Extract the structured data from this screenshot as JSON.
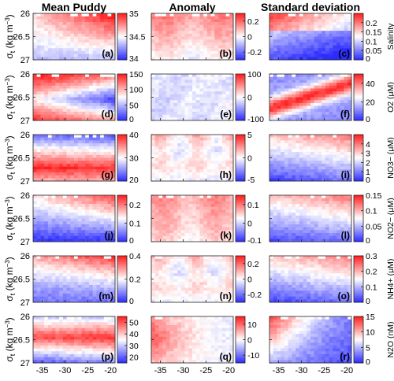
{
  "chart_data": {
    "type": "heatmap",
    "column_titles": [
      "Mean Puddy",
      "Anomaly",
      "Standard deviation"
    ],
    "y_axis_label_main": "σ",
    "y_axis_label_sub": "t",
    "y_axis_label_unit": " (kg m",
    "y_axis_label_exp": "−3",
    "y_axis_label_end": ")",
    "y_ticks": [
      "26",
      "26.5",
      "27"
    ],
    "y_range": [
      26,
      27
    ],
    "x_ticks": [
      "-35",
      "-30",
      "-25",
      "-20"
    ],
    "x_range": [
      -37,
      -19
    ],
    "rows": [
      {
        "variable": "Salinity",
        "cbar_label": "Salinity",
        "panels": [
          {
            "letter": "(a)",
            "pattern": "mean_salt",
            "cbar_ticks": [
              "35",
              "34.5",
              "34"
            ],
            "range": [
              34,
              35
            ]
          },
          {
            "letter": "(b)",
            "pattern": "anom_pos",
            "cbar_ticks": [
              "0.2",
              "0",
              "-0.2"
            ],
            "range": [
              -0.3,
              0.3
            ]
          },
          {
            "letter": "(c)",
            "pattern": "std_shallow",
            "cbar_ticks": [
              "0.2",
              "0.15",
              "0.1",
              "0.05",
              "0"
            ],
            "range": [
              0,
              0.25
            ]
          }
        ]
      },
      {
        "variable": "O2",
        "cbar_label": "O2 (μM)",
        "panels": [
          {
            "letter": "(d)",
            "pattern": "mean_o2",
            "cbar_ticks": [
              "150",
              "100",
              "50",
              "0"
            ],
            "range": [
              0,
              150
            ]
          },
          {
            "letter": "(e)",
            "pattern": "anom_neg",
            "cbar_ticks": [
              "100",
              "0",
              "-100"
            ],
            "range": [
              -100,
              100
            ]
          },
          {
            "letter": "(f)",
            "pattern": "std_band",
            "cbar_ticks": [
              "40",
              "20",
              "0"
            ],
            "range": [
              0,
              50
            ]
          }
        ]
      },
      {
        "variable": "NO3-",
        "cbar_label": "NO3− (μM)",
        "panels": [
          {
            "letter": "(g)",
            "pattern": "mean_no3",
            "cbar_ticks": [
              "40",
              "30",
              "20"
            ],
            "range": [
              20,
              40
            ]
          },
          {
            "letter": "(h)",
            "pattern": "anom_mixed",
            "cbar_ticks": [
              "5",
              "0",
              "-5"
            ],
            "range": [
              -5,
              5
            ]
          },
          {
            "letter": "(i)",
            "pattern": "std_top",
            "cbar_ticks": [
              "4",
              "3",
              "2",
              "1",
              "0"
            ],
            "range": [
              0,
              5
            ]
          }
        ]
      },
      {
        "variable": "NO2-",
        "cbar_label": "NO2− (μM)",
        "panels": [
          {
            "letter": "(j)",
            "pattern": "mean_no2",
            "cbar_ticks": [
              "0.2",
              "0.1",
              "0"
            ],
            "range": [
              0,
              0.25
            ]
          },
          {
            "letter": "(k)",
            "pattern": "anom_posdeep",
            "cbar_ticks": [
              "0.1",
              "0",
              "-0.1"
            ],
            "range": [
              -0.1,
              0.15
            ]
          },
          {
            "letter": "(l)",
            "pattern": "std_top",
            "cbar_ticks": [
              "0.15",
              "0.1",
              "0.05",
              "0"
            ],
            "range": [
              0,
              0.15
            ]
          }
        ]
      },
      {
        "variable": "NH4+",
        "cbar_label": "NH4+ (μM)",
        "panels": [
          {
            "letter": "(m)",
            "pattern": "mean_nh4",
            "cbar_ticks": [
              "0.4",
              "0.2",
              "0"
            ],
            "range": [
              0,
              0.4
            ]
          },
          {
            "letter": "(n)",
            "pattern": "anom_mixed",
            "cbar_ticks": [
              "0.2",
              "0",
              "-0.2"
            ],
            "range": [
              -0.3,
              0.3
            ]
          },
          {
            "letter": "(o)",
            "pattern": "std_top",
            "cbar_ticks": [
              "0.3",
              "0.2",
              "0.1",
              "0"
            ],
            "range": [
              0,
              0.3
            ]
          }
        ]
      },
      {
        "variable": "N2O",
        "cbar_label": "N2O (nM)",
        "panels": [
          {
            "letter": "(p)",
            "pattern": "mean_n2o",
            "cbar_ticks": [
              "50",
              "40",
              "30",
              "20"
            ],
            "range": [
              15,
              55
            ]
          },
          {
            "letter": "(q)",
            "pattern": "anom_west",
            "cbar_ticks": [
              "10",
              "0",
              "-10"
            ],
            "range": [
              -15,
              15
            ]
          },
          {
            "letter": "(r)",
            "pattern": "std_n2o",
            "cbar_ticks": [
              "15",
              "10",
              "5",
              "0"
            ],
            "range": [
              0,
              15
            ]
          }
        ]
      }
    ],
    "colormap": [
      "#2b2bff",
      "#ffffff",
      "#ff1a1a"
    ]
  }
}
